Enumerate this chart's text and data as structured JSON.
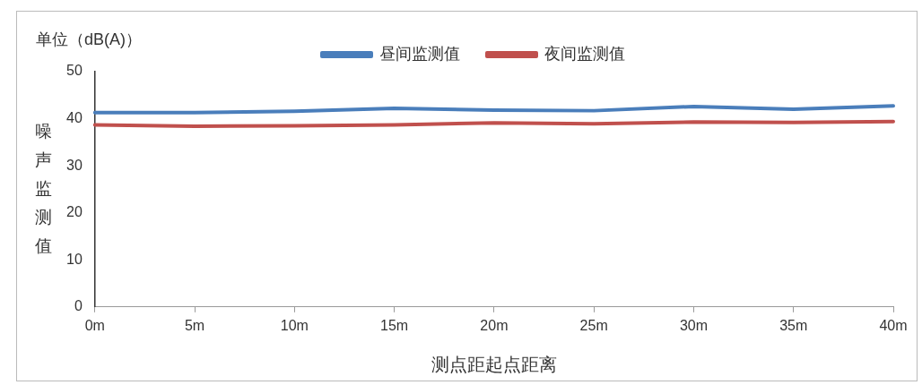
{
  "chart_data": {
    "type": "line",
    "ylabel": "噪声监测值",
    "xlabel": "测点距起点距离",
    "annotations": [
      "单位（dB(A)）"
    ],
    "categories": [
      "0m",
      "5m",
      "10m",
      "15m",
      "20m",
      "25m",
      "30m",
      "35m",
      "40m"
    ],
    "series": [
      {
        "name": "昼间监测值",
        "color": "#4a7ebb",
        "values": [
          41.3,
          41.3,
          41.6,
          42.2,
          41.8,
          41.7,
          42.6,
          42.0,
          42.7
        ]
      },
      {
        "name": "夜间监测值",
        "color": "#c0504d",
        "values": [
          38.7,
          38.4,
          38.5,
          38.7,
          39.1,
          38.9,
          39.3,
          39.2,
          39.4
        ]
      }
    ],
    "ylim": [
      0,
      50
    ],
    "yticks": [
      0,
      10,
      20,
      30,
      40,
      50
    ],
    "grid": false,
    "legend": "top",
    "marker": "none",
    "line_style": "solid"
  }
}
